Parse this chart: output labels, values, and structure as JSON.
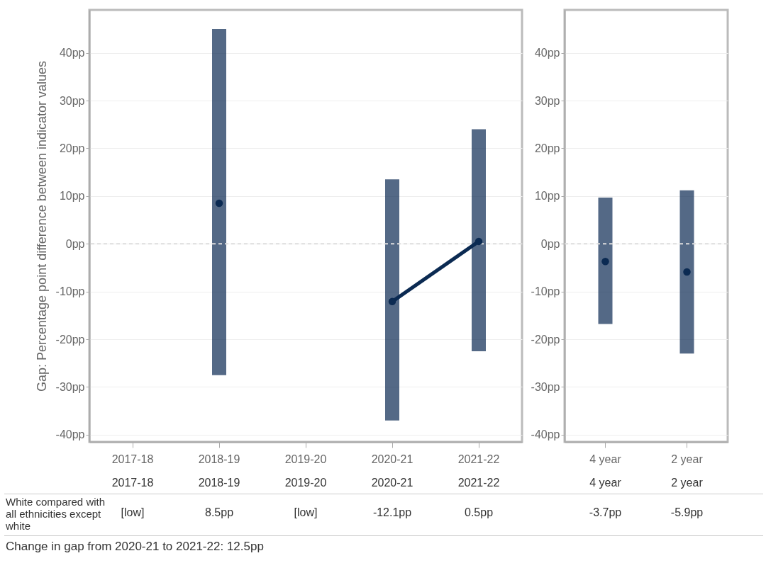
{
  "chart_data": [
    {
      "type": "line",
      "ylabel": "Gap: Percentage point difference between indicator values",
      "categories": [
        "2017-18",
        "2018-19",
        "2019-20",
        "2020-21",
        "2021-22"
      ],
      "values": [
        null,
        8.5,
        null,
        -12.1,
        0.5
      ],
      "errors": [
        null,
        [
          -27.5,
          45
        ],
        null,
        [
          -37,
          13.5
        ],
        [
          -22.5,
          24
        ]
      ],
      "value_labels": [
        "[low]",
        "8.5pp",
        "[low]",
        "-12.1pp",
        "0.5pp"
      ],
      "color": "#0b2a52",
      "marker": "circle",
      "grid": "y",
      "ylim": [
        -41.5,
        49
      ],
      "yticks": [
        {
          "value": -40,
          "label": "-40pp"
        },
        {
          "value": -30,
          "label": "-30pp"
        },
        {
          "value": -20,
          "label": "-20pp"
        },
        {
          "value": -10,
          "label": "-10pp"
        },
        {
          "value": 0,
          "label": "0pp"
        },
        {
          "value": 10,
          "label": "10pp"
        },
        {
          "value": 20,
          "label": "20pp"
        },
        {
          "value": 30,
          "label": "30pp"
        },
        {
          "value": 40,
          "label": "40pp"
        }
      ],
      "ref_lines": [
        {
          "axis": "y",
          "value": 0,
          "color": "#dddddd",
          "line_style": "dashed"
        }
      ],
      "annotations": [
        "White compared with all ethnicities except white",
        "Change in gap from 2020-21 to 2021-22: 12.5pp"
      ]
    },
    {
      "type": "scatter",
      "categories": [
        "4 year",
        "2 year"
      ],
      "values": [
        -3.7,
        -5.9
      ],
      "errors": [
        [
          -16.8,
          9.7
        ],
        [
          -23,
          11.2
        ]
      ],
      "value_labels": [
        "-3.7pp",
        "-5.9pp"
      ],
      "color": "#0b2a52",
      "marker": "circle",
      "grid": "y",
      "ylim": [
        -41.5,
        49
      ],
      "yticks": [
        {
          "value": -40,
          "label": "-40pp"
        },
        {
          "value": -30,
          "label": "-30pp"
        },
        {
          "value": -20,
          "label": "-20pp"
        },
        {
          "value": -10,
          "label": "-10pp"
        },
        {
          "value": 0,
          "label": "0pp"
        },
        {
          "value": 10,
          "label": "10pp"
        },
        {
          "value": 20,
          "label": "20pp"
        },
        {
          "value": 30,
          "label": "30pp"
        },
        {
          "value": 40,
          "label": "40pp"
        }
      ],
      "ref_lines": [
        {
          "axis": "y",
          "value": 0,
          "color": "#dddddd",
          "line_style": "dashed"
        }
      ]
    }
  ]
}
